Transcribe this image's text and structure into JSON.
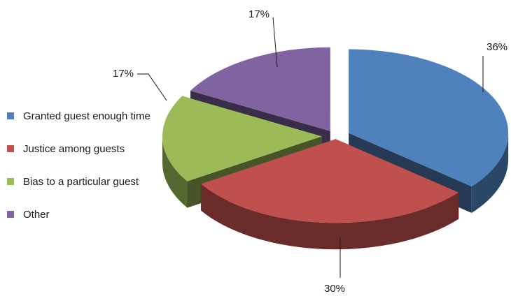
{
  "chart_data": {
    "type": "pie",
    "variant": "3d-exploded",
    "title": "",
    "legend_position": "left",
    "slices": [
      {
        "name": "Granted guest enough time",
        "value": 36,
        "label": "36%",
        "color": "#4f81bd"
      },
      {
        "name": "Justice among guests",
        "value": 30,
        "label": "30%",
        "color": "#c0504d"
      },
      {
        "name": "Bias to a particular guest",
        "value": 17,
        "label": "17%",
        "color": "#9bbb59"
      },
      {
        "name": "Other",
        "value": 17,
        "label": "17%",
        "color": "#8064a2"
      }
    ]
  }
}
